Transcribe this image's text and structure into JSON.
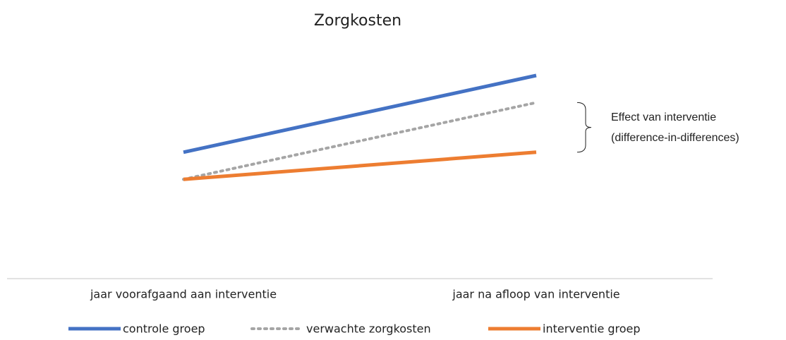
{
  "chart_data": {
    "type": "line",
    "title": "Zorgkosten",
    "categories": [
      "jaar voorafgaand aan interventie",
      "jaar na afloop van interventie"
    ],
    "series": [
      {
        "name": "controle groep",
        "color": "#4472c4",
        "style": "solid",
        "values": [
          56,
          90
        ]
      },
      {
        "name": "verwachte zorgkosten",
        "color": "#a5a5a5",
        "style": "dotted",
        "values": [
          44,
          78
        ]
      },
      {
        "name": "interventie groep",
        "color": "#ed7d31",
        "style": "solid",
        "values": [
          44,
          56
        ]
      }
    ],
    "ylim": [
      0,
      100
    ],
    "annotation": [
      "Effect van interventie",
      "(difference-in-differences)"
    ],
    "legend": "bottom"
  }
}
